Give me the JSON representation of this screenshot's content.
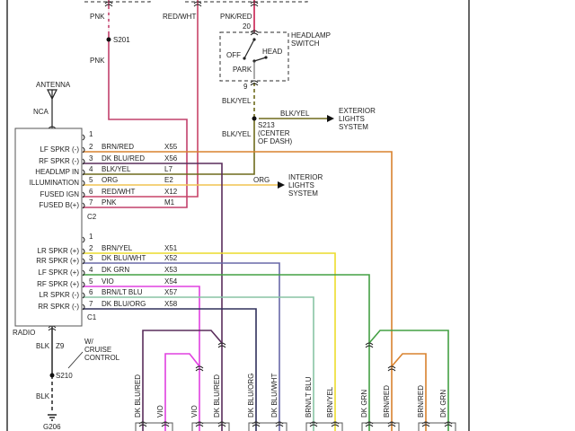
{
  "top": {
    "pnk_1": "PNK",
    "s201": "S201",
    "pnk_2": "PNK",
    "red_wht": "RED/WHT",
    "pnk_red": "PNK/RED",
    "pin20": "20",
    "pin9": "9"
  },
  "headlamp_switch": {
    "title_1": "HEADLAMP",
    "title_2": "SWITCH",
    "off": "OFF",
    "head": "HEAD",
    "park": "PARK"
  },
  "splice_s213": {
    "blk_yel_1": "BLK/YEL",
    "blk_yel_2": "BLK/YEL",
    "blk_yel_3": "BLK/YEL",
    "name": "S213",
    "loc_1": "(CENTER",
    "loc_2": "OF DASH)",
    "ext_1": "EXTERIOR",
    "ext_2": "LIGHTS",
    "ext_3": "SYSTEM"
  },
  "interior": {
    "org": "ORG",
    "l1": "INTERIOR",
    "l2": "LIGHTS",
    "l3": "SYSTEM"
  },
  "antenna": {
    "label": "ANTENNA",
    "nca": "NCA"
  },
  "radio": {
    "label": "RADIO",
    "c2": "C2",
    "c1": "C1",
    "c2_pins": [
      {
        "pin": "1",
        "func": "",
        "color": "",
        "circuit": ""
      },
      {
        "pin": "2",
        "func": "LF SPKR (-)",
        "color": "BRN/RED",
        "circuit": "X55"
      },
      {
        "pin": "3",
        "func": "RF SPKR (-)",
        "color": "DK BLU/RED",
        "circuit": "X56"
      },
      {
        "pin": "4",
        "func": "HEADLMP IN",
        "color": "BLK/YEL",
        "circuit": "L7"
      },
      {
        "pin": "5",
        "func": "ILLUMINATION",
        "color": "ORG",
        "circuit": "E2"
      },
      {
        "pin": "6",
        "func": "FUSED IGN",
        "color": "RED/WHT",
        "circuit": "X12"
      },
      {
        "pin": "7",
        "func": "FUSED B(+)",
        "color": "PNK",
        "circuit": "M1"
      }
    ],
    "c1_pins": [
      {
        "pin": "1",
        "func": "",
        "color": "",
        "circuit": ""
      },
      {
        "pin": "2",
        "func": "LR SPKR (+)",
        "color": "BRN/YEL",
        "circuit": "X51"
      },
      {
        "pin": "3",
        "func": "RR SPKR (+)",
        "color": "DK BLU/WHT",
        "circuit": "X52"
      },
      {
        "pin": "4",
        "func": "LF SPKR (+)",
        "color": "DK GRN",
        "circuit": "X53"
      },
      {
        "pin": "5",
        "func": "RF SPKR (+)",
        "color": "VIO",
        "circuit": "X54"
      },
      {
        "pin": "6",
        "func": "LR SPKR (-)",
        "color": "BRN/LT BLU",
        "circuit": "X57"
      },
      {
        "pin": "7",
        "func": "RR SPKR (-)",
        "color": "DK BLU/ORG",
        "circuit": "X58"
      }
    ]
  },
  "ground": {
    "blk_1": "BLK",
    "z9": "Z9",
    "cruise_1": "W/",
    "cruise_2": "CRUISE",
    "cruise_3": "CONTROL",
    "s210": "S210",
    "blk_2": "BLK",
    "g206": "G206"
  },
  "bottom_labels": [
    "DK BLU/RED",
    "VIO",
    "VIO",
    "DK BLU/RED",
    "DK BLU/ORG",
    "DK BLU/WHT",
    "BRN/LT BLU",
    "BRN/YEL",
    "DK GRN",
    "BRN/RED",
    "BRN/RED",
    "DK GRN"
  ],
  "wire_colors": {
    "PNK": "#c2406c",
    "RED/WHT": "#c84468",
    "PNK/RED": "#c81e4e",
    "BLK/YEL": "#6e6a1c",
    "BRN/RED": "#d9822e",
    "DK BLU/RED": "#5a2d5c",
    "ORG": "#f0c450",
    "BRN/YEL": "#ecdc2c",
    "DK BLU/WHT": "#6868a8",
    "DK GRN": "#44a044",
    "VIO": "#e040e0",
    "BRN/LT BLU": "#88c4a4",
    "DK BLU/ORG": "#30305c",
    "BLK": "#333333"
  }
}
